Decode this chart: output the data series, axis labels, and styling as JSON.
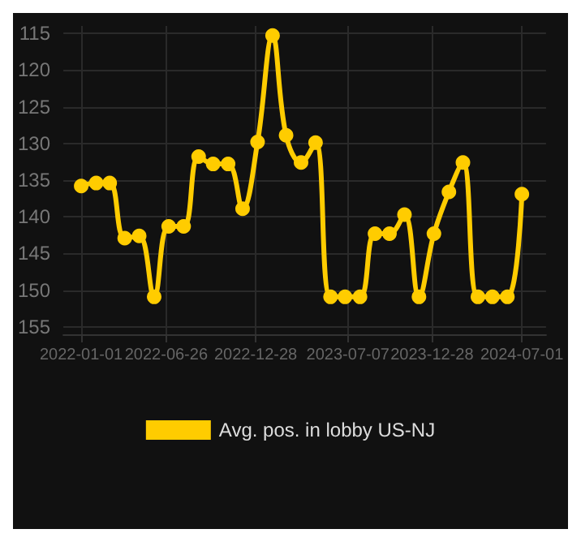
{
  "chart_data": {
    "type": "line",
    "x": [
      "2022-01-01",
      "2022-02-01",
      "2022-03-01",
      "2022-04-01",
      "2022-05-01",
      "2022-06-01",
      "2022-07-01",
      "2022-08-01",
      "2022-09-01",
      "2022-10-01",
      "2022-11-01",
      "2022-12-01",
      "2023-01-01",
      "2023-02-01",
      "2023-03-01",
      "2023-04-01",
      "2023-05-01",
      "2023-06-01",
      "2023-07-01",
      "2023-08-01",
      "2023-09-01",
      "2023-10-01",
      "2023-11-01",
      "2023-12-01",
      "2024-01-01",
      "2024-02-01",
      "2024-03-01",
      "2024-04-01",
      "2024-05-01",
      "2024-06-01",
      "2024-07-01"
    ],
    "series": [
      {
        "name": "Avg. pos. in lobby US-NJ",
        "color": "#ffcc00",
        "values": [
          135.8,
          135.4,
          135.4,
          142.9,
          142.6,
          150.9,
          141.3,
          141.3,
          131.8,
          132.8,
          132.8,
          138.9,
          129.8,
          115.3,
          128.9,
          132.6,
          129.9,
          150.9,
          150.9,
          150.9,
          142.3,
          142.3,
          139.7,
          150.9,
          142.3,
          136.6,
          132.6,
          150.9,
          150.9,
          150.9,
          136.9
        ]
      }
    ],
    "xlim": [
      "2021-11-25",
      "2024-08-20"
    ],
    "xticks": [
      "2022-01-01",
      "2022-06-26",
      "2022-12-28",
      "2023-07-07",
      "2023-12-28",
      "2024-07-01"
    ],
    "ylim": [
      156,
      114
    ],
    "yticks": [
      115,
      120,
      125,
      130,
      135,
      140,
      145,
      150,
      155
    ],
    "grid": true,
    "legend": "bottom",
    "marker": "circle",
    "line_style": "solid"
  }
}
